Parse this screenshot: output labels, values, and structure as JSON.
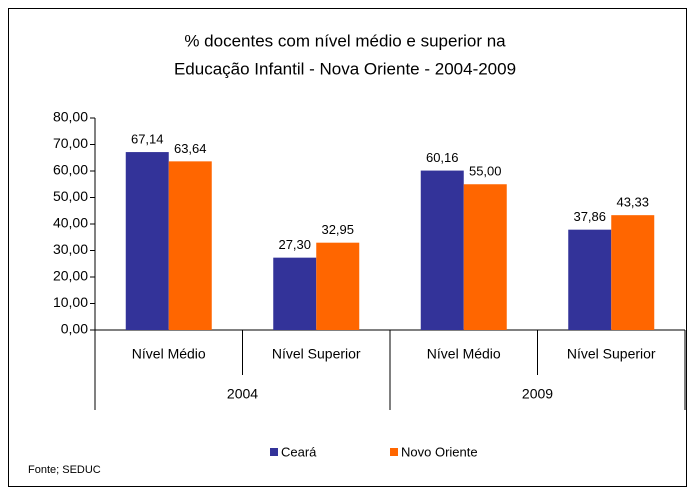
{
  "chart_data": {
    "type": "bar",
    "title": [
      "% docentes com nível médio e superior na",
      "Educação Infantil - Nova Oriente - 2004-2009"
    ],
    "groups": [
      {
        "name": "2004",
        "categories": [
          "Nível Médio",
          "Nível Superior"
        ]
      },
      {
        "name": "2009",
        "categories": [
          "Nível Médio",
          "Nível Superior"
        ]
      }
    ],
    "series": [
      {
        "name": "Ceará",
        "color": "#333399",
        "values": [
          67.14,
          27.3,
          60.16,
          37.86
        ],
        "value_labels": [
          "67,14",
          "27,30",
          "60,16",
          "37,86"
        ]
      },
      {
        "name": "Novo Oriente",
        "color": "#ff6600",
        "values": [
          63.64,
          32.95,
          55.0,
          43.33
        ],
        "value_labels": [
          "63,64",
          "32,95",
          "55,00",
          "43,33"
        ]
      }
    ],
    "ylim": [
      0,
      80
    ],
    "yticks": [
      {
        "value": 0,
        "label": "0,00"
      },
      {
        "value": 10,
        "label": "10,00"
      },
      {
        "value": 20,
        "label": "20,00"
      },
      {
        "value": 30,
        "label": "30,00"
      },
      {
        "value": 40,
        "label": "40,00"
      },
      {
        "value": 50,
        "label": "50,00"
      },
      {
        "value": 60,
        "label": "60,00"
      },
      {
        "value": 70,
        "label": "70,00"
      },
      {
        "value": 80,
        "label": "80,00"
      }
    ],
    "legend": "bottom",
    "source": "Fonte; SEDUC"
  }
}
